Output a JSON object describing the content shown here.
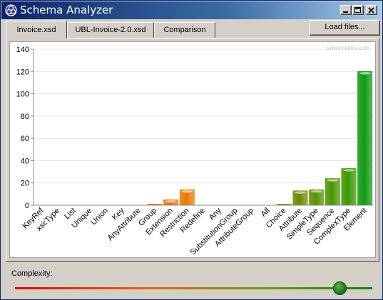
{
  "window": {
    "title": "Schema Analyzer"
  },
  "tabs": [
    {
      "label": "Invoice.xsd",
      "active": true
    },
    {
      "label": "UBL-Invoice-2.0.xsd",
      "active": false
    },
    {
      "label": "Comparison",
      "active": false
    }
  ],
  "toolbar": {
    "load_label": "Load files..."
  },
  "watermark": "www.visifire.com",
  "complexity": {
    "label": "Complexity:",
    "level": 0.91
  },
  "chart_data": {
    "type": "bar",
    "categories": [
      "KeyRef",
      "xsi:Type",
      "List",
      "Unique",
      "Union",
      "Key",
      "AnyAttribute",
      "Group",
      "Extension",
      "Restriction",
      "Redefine",
      "Any",
      "SubstitutionGroup",
      "AttributeGroup",
      "All",
      "Choice",
      "Attribute",
      "SimpleType",
      "Sequence",
      "ComplexType",
      "Element"
    ],
    "values": [
      0,
      0,
      0,
      0,
      0,
      0,
      0,
      1,
      5,
      14,
      0,
      0,
      0,
      0,
      0,
      1,
      13,
      14,
      24,
      33,
      120
    ],
    "colors": [
      "#e83a00",
      "#e83a00",
      "#e83a00",
      "#e83a00",
      "#e83a00",
      "#e83a00",
      "#e85200",
      "#e86000",
      "#e87000",
      "#e87a00",
      "#e87a00",
      "#e87a00",
      "#e87a00",
      "#e87a00",
      "#e87a00",
      "#7a8000",
      "#6a8a00",
      "#5a9000",
      "#4a9400",
      "#3a9800",
      "#119a11"
    ],
    "title": "",
    "xlabel": "",
    "ylabel": "",
    "ylim": [
      0,
      140
    ],
    "yticks": [
      0,
      20,
      40,
      60,
      80,
      100,
      120,
      140
    ],
    "grid": true
  }
}
